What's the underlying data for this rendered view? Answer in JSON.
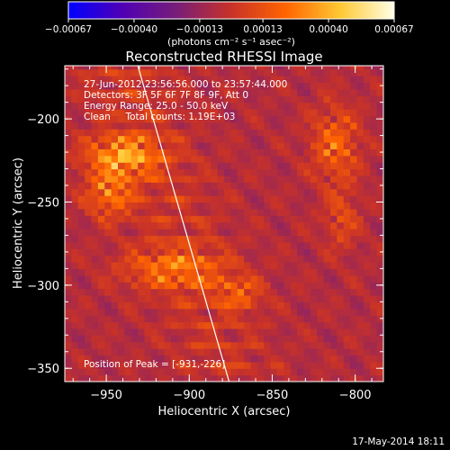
{
  "chart_data": {
    "type": "heatmap",
    "title": "Reconstructed RHESSI Image",
    "xlabel": "Heliocentric X (arcsec)",
    "ylabel": "Heliocentric Y (arcsec)",
    "xlim": [
      -975,
      -783
    ],
    "ylim": [
      -358,
      -168
    ],
    "x_ticks": [
      -950,
      -900,
      -850,
      -800
    ],
    "x_tick_labels": [
      "−950",
      "−900",
      "−850",
      "−800"
    ],
    "y_ticks": [
      -200,
      -250,
      -300,
      -350
    ],
    "y_tick_labels": [
      "−200",
      "−250",
      "−300",
      "−350"
    ],
    "colorbar": {
      "min": -0.00067,
      "max": 0.00067,
      "ticks": [
        -0.00067,
        -0.0004,
        -0.00013,
        0.00013,
        0.0004,
        0.00067
      ],
      "tick_labels": [
        "−0.00067",
        "−0.00040",
        "−0.00013",
        "0.00013",
        "0.00040",
        "0.00067"
      ],
      "unit_label": "(photons cm⁻² s⁻¹ asec⁻²)",
      "colors": [
        "#0000ff",
        "#5000b4",
        "#781e78",
        "#c83228",
        "#ff6400",
        "#ffc832",
        "#ffffe6"
      ]
    },
    "annotations": [
      "27-Jun-2012 23:56:56.000 to 23:57:44.000",
      "Detectors: 3F 5F 6F 7F 8F 9F, Att 0",
      "Energy Range: 25.0 - 50.0 keV",
      "Clean     Total counts: 1.19E+03"
    ],
    "peak_label": "Position of Peak = [-931,-226]",
    "peak": [
      -931,
      -226
    ],
    "limb_line": [
      [
        -931,
        -168
      ],
      [
        -876,
        -358
      ]
    ],
    "sources": [
      {
        "x": -940,
        "y": -222,
        "intensity": 0.00067,
        "sx": 22,
        "sy": 12
      },
      {
        "x": -948,
        "y": -245,
        "intensity": 0.0005,
        "sx": 14,
        "sy": 14
      },
      {
        "x": -910,
        "y": -290,
        "intensity": 0.00045,
        "sx": 30,
        "sy": 12
      },
      {
        "x": -870,
        "y": -305,
        "intensity": 0.00035,
        "sx": 14,
        "sy": 10
      },
      {
        "x": -812,
        "y": -215,
        "intensity": 0.00045,
        "sx": 14,
        "sy": 22
      },
      {
        "x": -808,
        "y": -260,
        "intensity": 0.00028,
        "sx": 10,
        "sy": 18
      }
    ],
    "grid": false
  },
  "footer": {
    "timestamp": "17-May-2014 18:11"
  }
}
